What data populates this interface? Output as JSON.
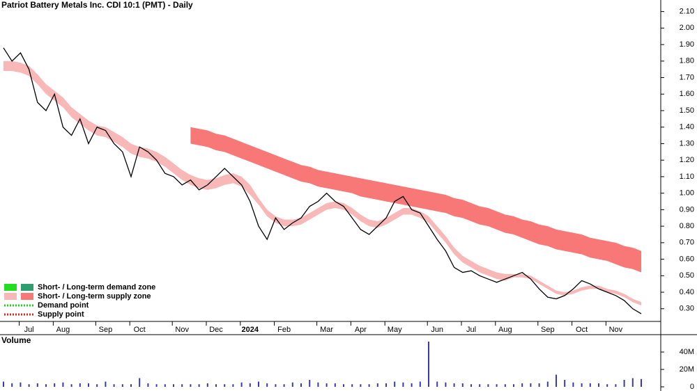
{
  "chart_data": [
    {
      "type": "line",
      "title": "Patriot Battery Metals Inc. CDI 10:1 (PMT) - Daily",
      "categories": [
        null,
        null,
        null,
        "Jul",
        null,
        null,
        null,
        "Aug",
        null,
        null,
        null,
        null,
        "Sep",
        null,
        null,
        null,
        "Oct",
        null,
        null,
        null,
        null,
        "Nov",
        null,
        null,
        null,
        "Dec",
        null,
        null,
        null,
        "2024",
        null,
        null,
        null,
        "Feb",
        null,
        null,
        null,
        null,
        "Mar",
        null,
        null,
        null,
        "Apr",
        null,
        null,
        null,
        "May",
        null,
        null,
        null,
        null,
        "Jun",
        null,
        null,
        null,
        "Jul",
        null,
        null,
        null,
        "Aug",
        null,
        null,
        null,
        null,
        "Sep",
        null,
        null,
        null,
        "Oct",
        null,
        null,
        null,
        "Nov",
        null,
        null,
        null
      ],
      "series": [
        {
          "color": "#000000",
          "values": [
            1.88,
            1.8,
            1.85,
            1.75,
            1.55,
            1.5,
            1.6,
            1.4,
            1.35,
            1.45,
            1.3,
            1.4,
            1.38,
            1.3,
            1.25,
            1.1,
            1.28,
            1.25,
            1.2,
            1.12,
            1.1,
            1.05,
            1.08,
            1.02,
            1.05,
            1.1,
            1.15,
            1.1,
            1.05,
            0.95,
            0.8,
            0.72,
            0.85,
            0.78,
            0.82,
            0.85,
            0.92,
            0.95,
            1.0,
            0.95,
            0.92,
            0.85,
            0.78,
            0.75,
            0.8,
            0.85,
            0.95,
            0.98,
            0.9,
            0.88,
            0.8,
            0.72,
            0.65,
            0.55,
            0.52,
            0.53,
            0.5,
            0.48,
            0.46,
            0.48,
            0.5,
            0.52,
            0.48,
            0.42,
            0.37,
            0.36,
            0.38,
            0.42,
            0.47,
            0.45,
            0.42,
            0.4,
            0.38,
            0.35,
            0.3,
            0.27
          ]
        }
      ],
      "bands": [
        {
          "color": "#f9b8b8",
          "upper": [
            1.8,
            1.8,
            1.79,
            1.77,
            1.72,
            1.66,
            1.62,
            1.58,
            1.52,
            1.48,
            1.44,
            1.41,
            1.4,
            1.37,
            1.34,
            1.3,
            1.28,
            1.27,
            1.25,
            1.22,
            1.18,
            1.14,
            1.11,
            1.09,
            1.08,
            1.09,
            1.11,
            1.12,
            1.1,
            1.05,
            0.97,
            0.9,
            0.86,
            0.84,
            0.84,
            0.85,
            0.88,
            0.91,
            0.94,
            0.95,
            0.94,
            0.91,
            0.87,
            0.84,
            0.83,
            0.85,
            0.88,
            0.91,
            0.91,
            0.89,
            0.86,
            0.8,
            0.74,
            0.67,
            0.62,
            0.59,
            0.56,
            0.54,
            0.52,
            0.51,
            0.51,
            0.51,
            0.5,
            0.47,
            0.44,
            0.41,
            0.4,
            0.41,
            0.43,
            0.44,
            0.44,
            0.42,
            0.41,
            0.39,
            0.36,
            0.34
          ],
          "lower": [
            1.74,
            1.74,
            1.73,
            1.71,
            1.66,
            1.6,
            1.56,
            1.52,
            1.46,
            1.42,
            1.38,
            1.35,
            1.34,
            1.31,
            1.28,
            1.24,
            1.22,
            1.21,
            1.19,
            1.16,
            1.12,
            1.08,
            1.05,
            1.03,
            1.02,
            1.03,
            1.05,
            1.06,
            1.04,
            0.99,
            0.93,
            0.86,
            0.82,
            0.8,
            0.8,
            0.81,
            0.84,
            0.87,
            0.9,
            0.91,
            0.9,
            0.87,
            0.83,
            0.8,
            0.79,
            0.81,
            0.84,
            0.87,
            0.87,
            0.85,
            0.82,
            0.76,
            0.7,
            0.63,
            0.58,
            0.55,
            0.52,
            0.5,
            0.48,
            0.47,
            0.49,
            0.49,
            0.48,
            0.45,
            0.42,
            0.39,
            0.38,
            0.39,
            0.41,
            0.42,
            0.42,
            0.4,
            0.39,
            0.37,
            0.34,
            0.32
          ]
        },
        {
          "color": "#f87878",
          "upper": [
            null,
            null,
            null,
            null,
            null,
            null,
            null,
            null,
            null,
            null,
            null,
            null,
            null,
            null,
            null,
            null,
            null,
            null,
            null,
            null,
            null,
            null,
            1.4,
            1.39,
            1.38,
            1.36,
            1.35,
            1.33,
            1.31,
            1.29,
            1.27,
            1.25,
            1.23,
            1.21,
            1.19,
            1.17,
            1.16,
            1.14,
            1.13,
            1.12,
            1.11,
            1.1,
            1.09,
            1.08,
            1.07,
            1.06,
            1.05,
            1.04,
            1.03,
            1.02,
            1.01,
            1.0,
            0.99,
            0.97,
            0.96,
            0.94,
            0.92,
            0.91,
            0.89,
            0.87,
            0.86,
            0.84,
            0.83,
            0.81,
            0.8,
            0.78,
            0.77,
            0.76,
            0.75,
            0.73,
            0.72,
            0.71,
            0.7,
            0.68,
            0.67,
            0.65
          ],
          "lower": [
            null,
            null,
            null,
            null,
            null,
            null,
            null,
            null,
            null,
            null,
            null,
            null,
            null,
            null,
            null,
            null,
            null,
            null,
            null,
            null,
            null,
            null,
            1.3,
            1.29,
            1.28,
            1.26,
            1.25,
            1.23,
            1.21,
            1.19,
            1.17,
            1.15,
            1.13,
            1.11,
            1.09,
            1.07,
            1.06,
            1.04,
            1.03,
            1.02,
            1.01,
            1.0,
            0.98,
            0.97,
            0.96,
            0.95,
            0.94,
            0.93,
            0.92,
            0.91,
            0.9,
            0.89,
            0.88,
            0.86,
            0.85,
            0.83,
            0.81,
            0.8,
            0.78,
            0.76,
            0.75,
            0.73,
            0.71,
            0.69,
            0.68,
            0.66,
            0.65,
            0.64,
            0.63,
            0.61,
            0.6,
            0.59,
            0.57,
            0.55,
            0.54,
            0.52
          ]
        }
      ],
      "legend": [
        {
          "label": "Short- / Long-term demand zone",
          "colors": [
            "#22dd22",
            "#2e9e6e"
          ],
          "style": "box"
        },
        {
          "label": "Short- / Long-term supply zone",
          "colors": [
            "#f9b8b8",
            "#f87878"
          ],
          "style": "box"
        },
        {
          "label": "Demand point",
          "colors": [
            "#22cc22"
          ],
          "style": "dots"
        },
        {
          "label": "Supply point",
          "colors": [
            "#dd2222"
          ],
          "style": "dots"
        }
      ],
      "ylim": [
        0.24,
        2.17
      ],
      "yticks": [
        {
          "value": 0.3,
          "label": "0.30"
        },
        {
          "value": 0.4,
          "label": "0.40"
        },
        {
          "value": 0.5,
          "label": "0.50"
        },
        {
          "value": 0.6,
          "label": "0.60"
        },
        {
          "value": 0.7,
          "label": "0.70"
        },
        {
          "value": 0.8,
          "label": "0.80"
        },
        {
          "value": 0.9,
          "label": "0.90"
        },
        {
          "value": 1.0,
          "label": "1.00"
        },
        {
          "value": 1.1,
          "label": "1.10"
        },
        {
          "value": 1.2,
          "label": "1.20"
        },
        {
          "value": 1.3,
          "label": "1.30"
        },
        {
          "value": 1.4,
          "label": "1.40"
        },
        {
          "value": 1.5,
          "label": "1.50"
        },
        {
          "value": 1.6,
          "label": "1.60"
        },
        {
          "value": 1.7,
          "label": "1.70"
        },
        {
          "value": 1.8,
          "label": "1.80"
        },
        {
          "value": 1.9,
          "label": "1.90"
        },
        {
          "value": 2.0,
          "label": "2.00"
        },
        {
          "value": 2.1,
          "label": "2.10"
        }
      ]
    },
    {
      "type": "bar",
      "title": "Volume",
      "color": "#3a3ab0",
      "values": [
        6000000,
        4000000,
        5000000,
        3000000,
        4000000,
        3000000,
        4000000,
        5000000,
        3000000,
        4000000,
        4000000,
        3000000,
        6000000,
        3000000,
        3000000,
        3000000,
        10000000,
        4000000,
        3000000,
        3000000,
        3000000,
        3000000,
        3000000,
        3000000,
        4000000,
        3000000,
        3000000,
        3000000,
        5000000,
        4000000,
        6000000,
        4000000,
        3000000,
        3000000,
        5000000,
        4000000,
        8000000,
        5000000,
        4000000,
        4000000,
        3000000,
        3000000,
        3000000,
        3000000,
        4000000,
        4000000,
        6000000,
        5000000,
        4000000,
        6000000,
        52000000,
        6000000,
        5000000,
        4000000,
        4000000,
        3000000,
        3000000,
        3000000,
        3000000,
        3000000,
        3000000,
        4000000,
        4000000,
        4000000,
        6000000,
        14000000,
        8000000,
        5000000,
        4000000,
        4000000,
        4000000,
        3000000,
        3000000,
        8000000,
        10000000,
        9000000
      ],
      "ylim": [
        0,
        60000000
      ],
      "yticks": [
        {
          "value": 0,
          "label": "0"
        },
        {
          "value": 20000000,
          "label": "20M"
        },
        {
          "value": 40000000,
          "label": "40M"
        }
      ]
    }
  ]
}
